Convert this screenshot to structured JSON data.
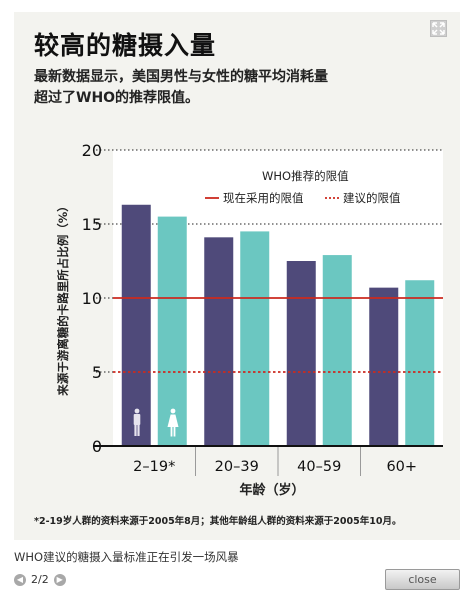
{
  "card": {
    "title": "较高的糖摄入量",
    "subtitle_line1": "最新数据显示，美国男性与女性的糖平均消耗量",
    "subtitle_line2": "超过了WHO的推荐限值。",
    "footnote": "*2-19岁人群的资料来源于2005年8月；其他年龄组人群的资料来源于2005年10月。",
    "expand_icon": "expand-icon"
  },
  "caption": "WHO建议的糖摄入量标准正在引发一场风暴",
  "pager": {
    "label": "2/2",
    "prev_icon": "chevron-left-icon",
    "next_icon": "chevron-right-icon"
  },
  "close_label": "close",
  "chart_data": {
    "type": "bar",
    "categories": [
      "2–19*",
      "20–39",
      "40–59",
      "60+"
    ],
    "series": [
      {
        "values": [
          16.3,
          14.1,
          12.5,
          10.7
        ],
        "color": "#4f4a7a",
        "icon": "male-icon"
      },
      {
        "values": [
          15.5,
          14.5,
          12.9,
          11.2
        ],
        "color": "#6bc7c1",
        "icon": "female-icon"
      }
    ],
    "ylabel": "来源于游离糖的卡路里所占比例（%）",
    "xlabel": "年龄（岁）",
    "ylim": [
      0,
      20
    ],
    "yticks": [
      0,
      5,
      10,
      15,
      20
    ],
    "reference_lines": [
      {
        "label": "现在采用的限值",
        "value": 10,
        "style": "solid",
        "color": "#cc2a1f"
      },
      {
        "label": "建议的限值",
        "value": 5,
        "style": "dotted",
        "color": "#cc2a1f"
      }
    ],
    "legend_title": "WHO推荐的限值",
    "legend_position": "top-right",
    "grid": "dotted at 15 and 20"
  }
}
